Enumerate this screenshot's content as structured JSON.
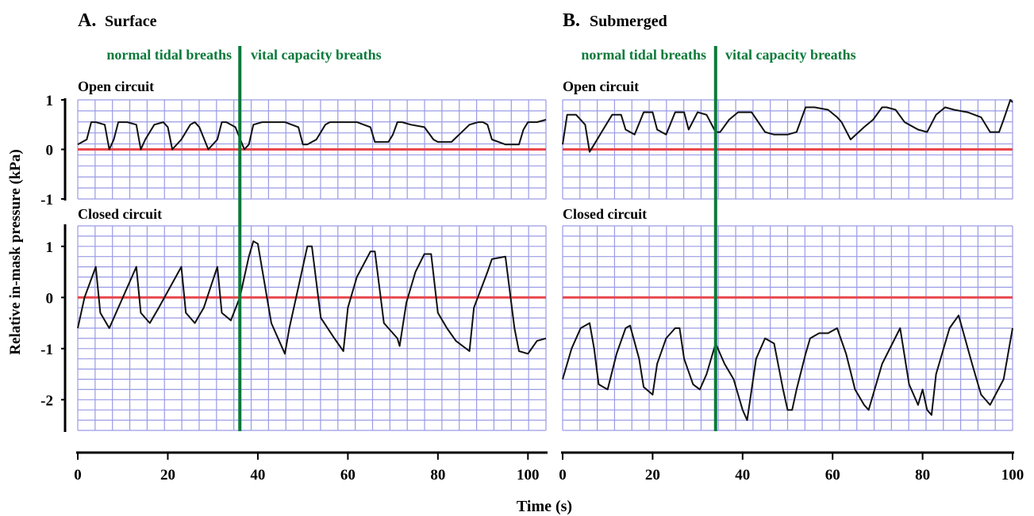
{
  "ylabel": "Relative in-mask pressure (kPa)",
  "xlabel": "Time (s)",
  "colors": {
    "grid": "#9a9ae6",
    "zero_line": "#e8474d",
    "marker": "#0b7a3a",
    "trace": "#111111"
  },
  "panels": [
    {
      "letter": "A.",
      "title": "Surface",
      "tidal_label": "normal tidal breaths",
      "vc_label": "vital capacity breaths",
      "x_ticks": [
        "0",
        "20",
        "40",
        "60",
        "80",
        "100"
      ]
    },
    {
      "letter": "B.",
      "title": "Submerged",
      "tidal_label": "normal tidal breaths",
      "vc_label": "vital capacity breaths",
      "x_ticks": [
        "0",
        "20",
        "40",
        "60",
        "80",
        "100"
      ]
    }
  ],
  "chart_data": [
    {
      "panel": "A. Surface",
      "subplot": "Open circuit",
      "type": "line",
      "xlabel": "Time (s)",
      "ylabel": "Relative in-mask pressure (kPa)",
      "xlim": [
        0,
        104
      ],
      "ylim": [
        -1,
        1
      ],
      "y_ticks": [
        "1",
        "0",
        "-1"
      ],
      "marker_x": 36,
      "series": [
        {
          "x": [
            0,
            2,
            3,
            4,
            6,
            7,
            8,
            9,
            11,
            13,
            14,
            15,
            17,
            19,
            20,
            21,
            23,
            25,
            26,
            27,
            29,
            31,
            32,
            33,
            35,
            37,
            38,
            39,
            41,
            46,
            49,
            50,
            51,
            53,
            55,
            56,
            58,
            62,
            65,
            66,
            69,
            70,
            71,
            72,
            74,
            77,
            79,
            80,
            83,
            87,
            89,
            90,
            91,
            92,
            95,
            98,
            99,
            100,
            102,
            104
          ],
          "y": [
            0.1,
            0.2,
            0.55,
            0.55,
            0.5,
            0.0,
            0.2,
            0.55,
            0.55,
            0.5,
            0.0,
            0.2,
            0.5,
            0.55,
            0.45,
            0.0,
            0.2,
            0.5,
            0.55,
            0.45,
            0.0,
            0.2,
            0.55,
            0.55,
            0.45,
            0.0,
            0.1,
            0.5,
            0.55,
            0.55,
            0.45,
            0.1,
            0.1,
            0.2,
            0.5,
            0.55,
            0.55,
            0.55,
            0.45,
            0.15,
            0.15,
            0.3,
            0.55,
            0.55,
            0.5,
            0.45,
            0.2,
            0.15,
            0.15,
            0.5,
            0.55,
            0.55,
            0.5,
            0.2,
            0.1,
            0.1,
            0.4,
            0.55,
            0.55,
            0.6
          ]
        }
      ]
    },
    {
      "panel": "A. Surface",
      "subplot": "Closed circuit",
      "type": "line",
      "xlabel": "Time (s)",
      "ylabel": "Relative in-mask pressure (kPa)",
      "xlim": [
        0,
        104
      ],
      "ylim": [
        -2.6,
        1.4
      ],
      "y_ticks": [
        "1",
        "0",
        "-1",
        "-2"
      ],
      "marker_x": 36,
      "series": [
        {
          "x": [
            0,
            1.5,
            4,
            5,
            7,
            9,
            13,
            14,
            16,
            18,
            23,
            24,
            26,
            28,
            31,
            32,
            34,
            36,
            38,
            39,
            40,
            43,
            46,
            47,
            49,
            51,
            52,
            54,
            57,
            59,
            60,
            62,
            65,
            66,
            68,
            71,
            71.5,
            73,
            75,
            77,
            78.5,
            80,
            82,
            84,
            87,
            88,
            91,
            92,
            95,
            97,
            98,
            100,
            102,
            104
          ],
          "y": [
            -0.6,
            0.0,
            0.6,
            -0.3,
            -0.6,
            -0.2,
            0.6,
            -0.3,
            -0.5,
            -0.2,
            0.6,
            -0.3,
            -0.5,
            -0.2,
            0.6,
            -0.3,
            -0.45,
            0.0,
            0.8,
            1.1,
            1.05,
            -0.5,
            -1.1,
            -0.6,
            0.2,
            1.0,
            1.0,
            -0.4,
            -0.8,
            -1.05,
            -0.2,
            0.4,
            0.9,
            0.9,
            -0.5,
            -0.8,
            -0.95,
            -0.1,
            0.5,
            0.85,
            0.85,
            -0.3,
            -0.6,
            -0.85,
            -1.05,
            -0.2,
            0.5,
            0.75,
            0.8,
            -0.6,
            -1.05,
            -1.1,
            -0.85,
            -0.8
          ]
        }
      ]
    },
    {
      "panel": "B. Submerged",
      "subplot": "Open circuit",
      "type": "line",
      "xlabel": "Time (s)",
      "ylabel": "Relative in-mask pressure (kPa)",
      "xlim": [
        0,
        100
      ],
      "ylim": [
        -1,
        1
      ],
      "marker_x": 34,
      "series": [
        {
          "x": [
            0,
            1,
            3,
            5,
            6,
            7,
            9,
            11,
            13,
            14,
            16,
            18,
            20,
            21,
            23,
            25,
            27,
            28,
            30,
            32,
            34,
            35,
            37,
            39,
            42,
            45,
            47,
            49,
            50,
            52,
            54,
            56,
            59,
            61,
            62,
            64,
            67,
            69,
            71,
            72,
            74,
            76,
            79,
            81,
            83,
            85,
            87,
            90,
            93,
            95,
            97,
            98,
            99.5,
            100
          ],
          "y": [
            0.1,
            0.7,
            0.7,
            0.5,
            -0.05,
            0.1,
            0.4,
            0.7,
            0.7,
            0.4,
            0.3,
            0.75,
            0.75,
            0.4,
            0.3,
            0.75,
            0.75,
            0.4,
            0.75,
            0.7,
            0.35,
            0.35,
            0.6,
            0.75,
            0.75,
            0.35,
            0.3,
            0.3,
            0.3,
            0.35,
            0.85,
            0.85,
            0.8,
            0.65,
            0.55,
            0.2,
            0.45,
            0.6,
            0.85,
            0.85,
            0.8,
            0.55,
            0.4,
            0.35,
            0.7,
            0.85,
            0.8,
            0.75,
            0.65,
            0.35,
            0.35,
            0.6,
            1.0,
            0.95
          ]
        }
      ]
    },
    {
      "panel": "B. Submerged",
      "subplot": "Closed circuit",
      "type": "line",
      "xlabel": "Time (s)",
      "ylabel": "Relative in-mask pressure (kPa)",
      "xlim": [
        0,
        100
      ],
      "ylim": [
        -2.6,
        1.4
      ],
      "marker_x": 34,
      "series": [
        {
          "x": [
            0,
            2,
            4,
            6,
            7,
            8,
            10,
            12,
            14,
            15,
            17,
            18,
            20,
            21,
            23,
            25,
            26,
            27,
            29,
            30.5,
            32,
            34,
            36,
            38,
            40,
            41,
            43,
            45,
            47,
            49,
            50,
            51,
            52,
            54,
            55,
            57,
            59,
            61,
            63,
            65,
            67,
            68,
            71,
            75,
            77,
            79,
            80,
            81,
            82,
            83,
            86,
            88,
            91,
            93,
            95,
            98,
            100
          ],
          "y": [
            -1.6,
            -1.0,
            -0.6,
            -0.5,
            -1.0,
            -1.7,
            -1.8,
            -1.1,
            -0.6,
            -0.55,
            -1.2,
            -1.75,
            -1.9,
            -1.3,
            -0.8,
            -0.6,
            -0.6,
            -1.2,
            -1.7,
            -1.8,
            -1.5,
            -0.9,
            -1.3,
            -1.6,
            -2.2,
            -2.4,
            -1.2,
            -0.8,
            -0.9,
            -1.8,
            -2.2,
            -2.2,
            -1.8,
            -1.1,
            -0.8,
            -0.7,
            -0.7,
            -0.6,
            -1.1,
            -1.8,
            -2.1,
            -2.2,
            -1.3,
            -0.6,
            -1.7,
            -2.1,
            -1.8,
            -2.2,
            -2.3,
            -1.5,
            -0.6,
            -0.35,
            -1.3,
            -1.9,
            -2.1,
            -1.6,
            -0.6
          ]
        }
      ]
    }
  ]
}
